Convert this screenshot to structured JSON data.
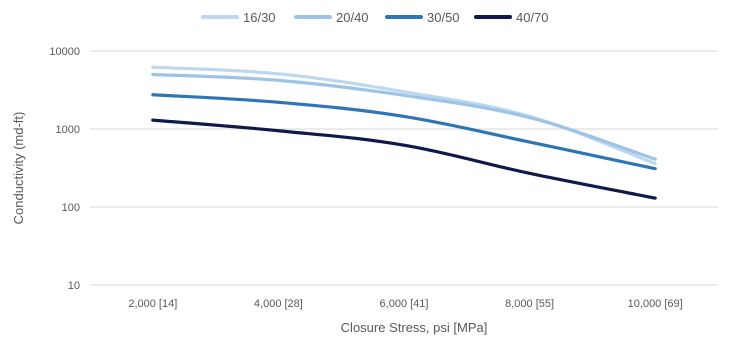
{
  "chart_data": {
    "type": "line",
    "title": "",
    "xlabel": "Closure Stress, psi [MPa]",
    "ylabel": "Conductivity (md-ft)",
    "y_scale": "log",
    "ylim": [
      10,
      10000
    ],
    "y_ticks": [
      "10",
      "100",
      "1000",
      "10000"
    ],
    "grid": "horizontal",
    "legend_position": "top",
    "categories": [
      "2,000 [14]",
      "4,000 [28]",
      "6,000 [41]",
      "8,000 [55]",
      "10,000 [69]"
    ],
    "series": [
      {
        "name": "16/30",
        "color": "#bdd7ee",
        "values": [
          6200,
          5100,
          3000,
          1450,
          360
        ]
      },
      {
        "name": "20/40",
        "color": "#9dc3e6",
        "values": [
          5000,
          4200,
          2700,
          1400,
          410
        ]
      },
      {
        "name": "30/50",
        "color": "#2e75b6",
        "values": [
          2750,
          2200,
          1450,
          680,
          310
        ]
      },
      {
        "name": "40/70",
        "color": "#0d1a4a",
        "values": [
          1300,
          950,
          620,
          270,
          130
        ]
      }
    ]
  }
}
